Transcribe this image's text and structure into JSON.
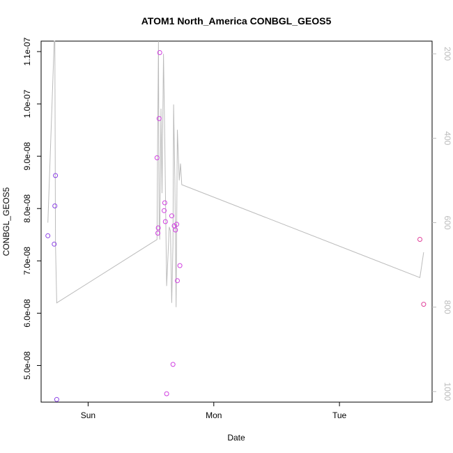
{
  "chart_data": {
    "type": "scatter",
    "title": "ATOM1 North_America CONBGL_GEOS5",
    "xlabel": "Date",
    "ylabel": "CONBGL_GEOS5",
    "x_ticks": [
      {
        "label": "Sun",
        "value": 0.0
      },
      {
        "label": "Mon",
        "value": 1.0
      },
      {
        "label": "Tue",
        "value": 2.0
      }
    ],
    "xlim": [
      -0.374,
      2.737
    ],
    "ylim": [
      4.3e-08,
      1.12e-07
    ],
    "y_ticks": [
      {
        "label": "5.0e-08",
        "value": 5e-08
      },
      {
        "label": "6.0e-08",
        "value": 6e-08
      },
      {
        "label": "7.0e-08",
        "value": 7e-08
      },
      {
        "label": "8.0e-08",
        "value": 8e-08
      },
      {
        "label": "9.0e-08",
        "value": 9e-08
      },
      {
        "label": "1.0e-07",
        "value": 1e-07
      },
      {
        "label": "1.1e-07",
        "value": 1.1e-07
      }
    ],
    "y2lim": [
      1025,
      170
    ],
    "y2_ticks": [
      {
        "label": "200",
        "value": 200
      },
      {
        "label": "400",
        "value": 400
      },
      {
        "label": "600",
        "value": 600
      },
      {
        "label": "800",
        "value": 800
      },
      {
        "label": "1000",
        "value": 1000
      }
    ],
    "colors": {
      "points_low": "#7b2fe0",
      "points_high": "#e03fd0",
      "line": "#bbbbbb",
      "axis": "#000000",
      "right_axis": "#bbbbbb"
    },
    "points": [
      {
        "x": -0.32,
        "y": 7.48e-08,
        "color": "#8a3fe6"
      },
      {
        "x": -0.27,
        "y": 7.32e-08,
        "color": "#8a3fe6"
      },
      {
        "x": -0.265,
        "y": 8.05e-08,
        "color": "#8a3fe6"
      },
      {
        "x": -0.26,
        "y": 8.63e-08,
        "color": "#8a3fe6"
      },
      {
        "x": -0.25,
        "y": 4.35e-08,
        "color": "#8a3fe6"
      },
      {
        "x": 0.548,
        "y": 8.97e-08,
        "color": "#d03ee0"
      },
      {
        "x": 0.555,
        "y": 7.53e-08,
        "color": "#d03ee0"
      },
      {
        "x": 0.558,
        "y": 7.63e-08,
        "color": "#d03ee0"
      },
      {
        "x": 0.565,
        "y": 9.72e-08,
        "color": "#d03ee0"
      },
      {
        "x": 0.57,
        "y": 1.098e-07,
        "color": "#d03ee0"
      },
      {
        "x": 0.605,
        "y": 7.96e-08,
        "color": "#d03ee0"
      },
      {
        "x": 0.61,
        "y": 8.11e-08,
        "color": "#d03ee0"
      },
      {
        "x": 0.615,
        "y": 7.75e-08,
        "color": "#d03ee0"
      },
      {
        "x": 0.625,
        "y": 4.46e-08,
        "color": "#d03ee0"
      },
      {
        "x": 0.665,
        "y": 7.86e-08,
        "color": "#d03ee0"
      },
      {
        "x": 0.675,
        "y": 5.02e-08,
        "color": "#d03ee0"
      },
      {
        "x": 0.685,
        "y": 7.67e-08,
        "color": "#d03ee0"
      },
      {
        "x": 0.695,
        "y": 7.59e-08,
        "color": "#d03ee0"
      },
      {
        "x": 0.705,
        "y": 7.7e-08,
        "color": "#d03ee0"
      },
      {
        "x": 0.71,
        "y": 6.62e-08,
        "color": "#d03ee0"
      },
      {
        "x": 0.73,
        "y": 6.91e-08,
        "color": "#d03ee0"
      },
      {
        "x": 2.64,
        "y": 7.41e-08,
        "color": "#e0409a"
      },
      {
        "x": 2.67,
        "y": 6.17e-08,
        "color": "#e0409a"
      }
    ],
    "line_y2": [
      {
        "x": -0.32,
        "y2": 600
      },
      {
        "x": -0.27,
        "y2": 170
      },
      {
        "x": -0.265,
        "y2": 170
      },
      {
        "x": -0.26,
        "y2": 650
      },
      {
        "x": -0.25,
        "y2": 790
      },
      {
        "x": 0.548,
        "y2": 640
      },
      {
        "x": 0.553,
        "y2": 400
      },
      {
        "x": 0.56,
        "y2": 170
      },
      {
        "x": 0.565,
        "y2": 610
      },
      {
        "x": 0.57,
        "y2": 640
      },
      {
        "x": 0.58,
        "y2": 330
      },
      {
        "x": 0.588,
        "y2": 530
      },
      {
        "x": 0.6,
        "y2": 200
      },
      {
        "x": 0.61,
        "y2": 400
      },
      {
        "x": 0.625,
        "y2": 750
      },
      {
        "x": 0.635,
        "y2": 680
      },
      {
        "x": 0.645,
        "y2": 610
      },
      {
        "x": 0.655,
        "y2": 620
      },
      {
        "x": 0.665,
        "y2": 790
      },
      {
        "x": 0.675,
        "y2": 650
      },
      {
        "x": 0.68,
        "y2": 320
      },
      {
        "x": 0.69,
        "y2": 500
      },
      {
        "x": 0.7,
        "y2": 800
      },
      {
        "x": 0.71,
        "y2": 380
      },
      {
        "x": 0.725,
        "y2": 500
      },
      {
        "x": 0.735,
        "y2": 460
      },
      {
        "x": 0.745,
        "y2": 510
      },
      {
        "x": 2.64,
        "y2": 730
      },
      {
        "x": 2.67,
        "y2": 670
      }
    ]
  }
}
